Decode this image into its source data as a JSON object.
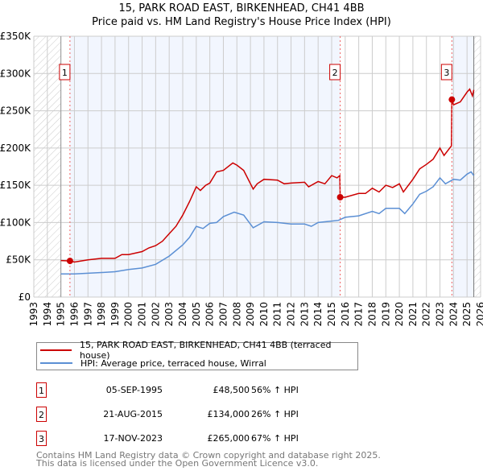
{
  "chart_data": {
    "type": "line",
    "title": "15, PARK ROAD EAST, BIRKENHEAD, CH41 4BB",
    "subtitle": "Price paid vs. HM Land Registry's House Price Index (HPI)",
    "xlim": [
      1993,
      2026
    ],
    "ylim": [
      0,
      350000
    ],
    "x_ticks": [
      "1993",
      "1994",
      "1995",
      "1996",
      "1997",
      "1998",
      "1999",
      "2000",
      "2001",
      "2002",
      "2003",
      "2004",
      "2005",
      "2006",
      "2007",
      "2008",
      "2009",
      "2010",
      "2011",
      "2012",
      "2013",
      "2014",
      "2015",
      "2016",
      "2017",
      "2018",
      "2019",
      "2020",
      "2021",
      "2022",
      "2023",
      "2024",
      "2025",
      "2026"
    ],
    "y_ticks": [
      {
        "v": 0,
        "label": "£0"
      },
      {
        "v": 50000,
        "label": "£50K"
      },
      {
        "v": 100000,
        "label": "£100K"
      },
      {
        "v": 150000,
        "label": "£150K"
      },
      {
        "v": 200000,
        "label": "£200K"
      },
      {
        "v": 250000,
        "label": "£250K"
      },
      {
        "v": 300000,
        "label": "£300K"
      },
      {
        "v": 350000,
        "label": "£350K"
      }
    ],
    "grid": true,
    "series": [
      {
        "name": "15, PARK ROAD EAST, BIRKENHEAD, CH41 4BB (terraced house)",
        "color": "#cc0000",
        "x": [
          1995,
          1995.67,
          1996,
          1997,
          1998,
          1999,
          1999.5,
          2000,
          2001,
          2001.5,
          2002,
          2002.5,
          2003,
          2003.5,
          2004,
          2004.5,
          2005,
          2005.3,
          2005.7,
          2006,
          2006.5,
          2007,
          2007.7,
          2008,
          2008.5,
          2009.2,
          2009.5,
          2010,
          2011,
          2011.5,
          2012,
          2013,
          2013.3,
          2014,
          2014.5,
          2015,
          2015.4,
          2015.6,
          2015.63,
          2016,
          2017,
          2017.5,
          2018,
          2018.5,
          2019,
          2019.5,
          2020,
          2020.3,
          2021,
          2021.5,
          2022,
          2022.5,
          2023,
          2023.3,
          2023.85,
          2023.88,
          2024,
          2024.5,
          2025,
          2025.2,
          2025.4,
          2025.5
        ],
        "y": [
          49000,
          48500,
          47000,
          50000,
          52000,
          52000,
          57000,
          57000,
          61000,
          66000,
          69000,
          75000,
          85000,
          95000,
          110000,
          128000,
          148000,
          143000,
          150000,
          153000,
          168000,
          170000,
          180000,
          177000,
          170000,
          145000,
          152000,
          158000,
          157000,
          152000,
          153000,
          154000,
          148000,
          155000,
          152000,
          163000,
          160000,
          163000,
          134000,
          134000,
          139000,
          139000,
          146000,
          141000,
          150000,
          147000,
          152000,
          141000,
          158000,
          172000,
          178000,
          185000,
          200000,
          190000,
          203000,
          265000,
          258000,
          262000,
          275000,
          279000,
          270000,
          278000
        ]
      },
      {
        "name": "HPI: Average price, terraced house, Wirral",
        "color": "#5b8fd4",
        "x": [
          1995,
          1996,
          1997,
          1998,
          1999,
          2000,
          2001,
          2002,
          2003,
          2004,
          2004.5,
          2005,
          2005.5,
          2006,
          2006.5,
          2007,
          2007.8,
          2008.5,
          2009.2,
          2010,
          2011,
          2012,
          2013,
          2013.5,
          2014,
          2015,
          2015.5,
          2016,
          2017,
          2018,
          2018.5,
          2019,
          2020,
          2020.4,
          2021,
          2021.5,
          2022,
          2022.5,
          2023,
          2023.4,
          2024,
          2024.5,
          2025,
          2025.3,
          2025.5
        ],
        "y": [
          31000,
          31000,
          32000,
          33000,
          34000,
          37000,
          39000,
          44000,
          55000,
          70000,
          80000,
          95000,
          92000,
          99000,
          100000,
          108000,
          114000,
          110000,
          93000,
          101000,
          100000,
          98000,
          98000,
          95000,
          100000,
          102000,
          103000,
          107000,
          109000,
          115000,
          112000,
          119000,
          119000,
          112000,
          125000,
          138000,
          142000,
          148000,
          160000,
          152000,
          158000,
          157000,
          165000,
          168000,
          163000
        ]
      }
    ],
    "sales": [
      {
        "id": "1",
        "x": 1995.67,
        "y": 48500
      },
      {
        "id": "2",
        "x": 2015.63,
        "y": 134000
      },
      {
        "id": "3",
        "x": 2023.88,
        "y": 265000
      }
    ],
    "shaded_ranges": [
      [
        1995.67,
        2015.63
      ],
      [
        2023.88,
        2025.5
      ]
    ],
    "hatched_ranges": [
      [
        1993,
        1995
      ],
      [
        2025.5,
        2026
      ]
    ]
  },
  "legend": {
    "property": "15, PARK ROAD EAST, BIRKENHEAD, CH41 4BB (terraced house)",
    "hpi": "HPI: Average price, terraced house, Wirral"
  },
  "transactions": [
    {
      "num": "1",
      "date": "05-SEP-1995",
      "price": "£48,500",
      "hpi": "56% ↑ HPI"
    },
    {
      "num": "2",
      "date": "21-AUG-2015",
      "price": "£134,000",
      "hpi": "26% ↑ HPI"
    },
    {
      "num": "3",
      "date": "17-NOV-2023",
      "price": "£265,000",
      "hpi": "67% ↑ HPI"
    }
  ],
  "footer": {
    "line1": "Contains HM Land Registry data © Crown copyright and database right 2025.",
    "line2": "This data is licensed under the Open Government Licence v3.0."
  }
}
